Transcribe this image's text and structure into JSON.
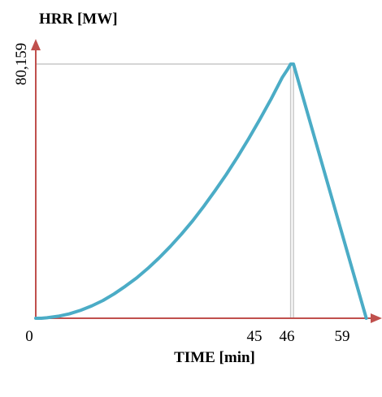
{
  "colors": {
    "axis": "#c0504d",
    "curve": "#4bacc6",
    "guide": "#c8c8c8",
    "text": "#000000"
  },
  "chart_data": {
    "type": "line",
    "ylabel": "HRR [MW]",
    "xlabel": "TIME [min]",
    "x_ticks": [
      "0",
      "45",
      "46",
      "59"
    ],
    "y_ticks": [
      "80,159"
    ],
    "xlim": [
      0,
      60.5
    ],
    "ylim": [
      0,
      86
    ],
    "peak": {
      "x": 45.5,
      "y": 80.159
    },
    "series": [
      {
        "values": [
          {
            "x": 0,
            "y": 0
          },
          {
            "x": 1,
            "y": 0
          },
          {
            "x": 2,
            "y": 0.16
          },
          {
            "x": 4,
            "y": 0.63
          },
          {
            "x": 6,
            "y": 1.4
          },
          {
            "x": 8,
            "y": 2.5
          },
          {
            "x": 10,
            "y": 3.9
          },
          {
            "x": 12,
            "y": 5.6
          },
          {
            "x": 14,
            "y": 7.7
          },
          {
            "x": 16,
            "y": 10.1
          },
          {
            "x": 18,
            "y": 12.7
          },
          {
            "x": 20,
            "y": 15.7
          },
          {
            "x": 22,
            "y": 19.0
          },
          {
            "x": 24,
            "y": 22.6
          },
          {
            "x": 26,
            "y": 26.5
          },
          {
            "x": 28,
            "y": 30.7
          },
          {
            "x": 30,
            "y": 35.3
          },
          {
            "x": 32,
            "y": 40.2
          },
          {
            "x": 34,
            "y": 45.3
          },
          {
            "x": 36,
            "y": 50.8
          },
          {
            "x": 38,
            "y": 56.6
          },
          {
            "x": 40,
            "y": 62.7
          },
          {
            "x": 42,
            "y": 69.1
          },
          {
            "x": 44,
            "y": 75.9
          },
          {
            "x": 45,
            "y": 78.6
          },
          {
            "x": 45.5,
            "y": 80.159
          },
          {
            "x": 46,
            "y": 80.159
          },
          {
            "x": 59,
            "y": 0
          }
        ]
      }
    ]
  }
}
